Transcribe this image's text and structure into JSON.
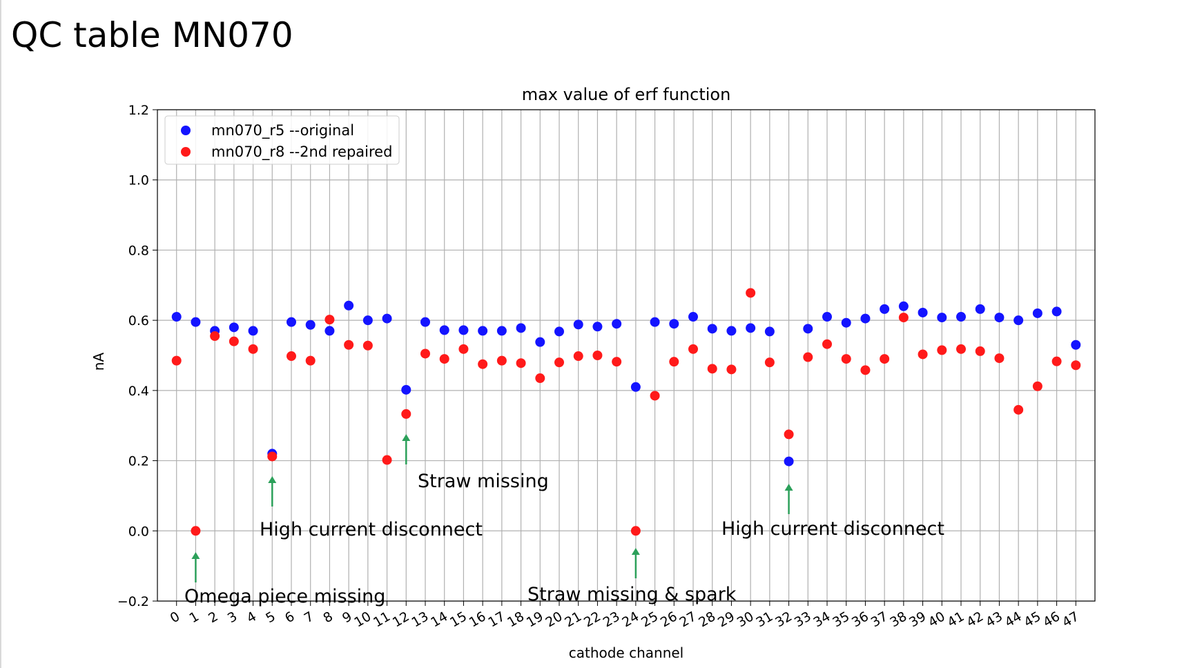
{
  "slide": {
    "title": "QC table MN070"
  },
  "chart_data": {
    "type": "scatter",
    "title": "max value of erf function",
    "xlabel": "cathode channel",
    "ylabel": "nA",
    "ylim": [
      -0.2,
      1.2
    ],
    "yticks": [
      -0.2,
      0.0,
      0.2,
      0.4,
      0.6,
      0.8,
      1.0,
      1.2
    ],
    "ytick_labels": [
      "−0.2",
      "0.0",
      "0.2",
      "0.4",
      "0.6",
      "0.8",
      "1.0",
      "1.2"
    ],
    "xlim": [
      -1,
      48
    ],
    "xticks": [
      0,
      1,
      2,
      3,
      4,
      5,
      6,
      7,
      8,
      9,
      10,
      11,
      12,
      13,
      14,
      15,
      16,
      17,
      18,
      19,
      20,
      21,
      22,
      23,
      24,
      25,
      26,
      27,
      28,
      29,
      30,
      31,
      32,
      33,
      34,
      35,
      36,
      37,
      38,
      39,
      40,
      41,
      42,
      43,
      44,
      45,
      46,
      47
    ],
    "xtick_labels": [
      "0",
      "1",
      "2",
      "3",
      "4",
      "5",
      "6",
      "7",
      "8",
      "9",
      "10",
      "11",
      "12",
      "13",
      "14",
      "15",
      "16",
      "17",
      "18",
      "19",
      "20",
      "21",
      "22",
      "23",
      "24",
      "25",
      "26",
      "27",
      "28",
      "29",
      "30",
      "31",
      "32",
      "33",
      "34",
      "35",
      "36",
      "37",
      "38",
      "39",
      "40",
      "41",
      "42",
      "43",
      "44",
      "45",
      "46",
      "47"
    ],
    "grid": true,
    "legend_position": "top-left",
    "series": [
      {
        "name": "mn070_r5 --original",
        "color": "#1414ff",
        "x": [
          0,
          1,
          2,
          3,
          4,
          5,
          6,
          7,
          8,
          9,
          10,
          11,
          12,
          13,
          14,
          15,
          16,
          17,
          18,
          19,
          20,
          21,
          22,
          23,
          24,
          25,
          26,
          27,
          28,
          29,
          30,
          31,
          32,
          33,
          34,
          35,
          36,
          37,
          38,
          39,
          40,
          41,
          42,
          43,
          44,
          45,
          46,
          47
        ],
        "y": [
          0.61,
          0.595,
          0.57,
          0.58,
          0.57,
          0.22,
          0.595,
          0.587,
          0.57,
          0.642,
          0.6,
          0.605,
          0.402,
          0.595,
          0.572,
          0.572,
          0.57,
          0.57,
          0.578,
          0.538,
          0.568,
          0.588,
          0.582,
          0.59,
          0.41,
          0.595,
          0.59,
          0.61,
          0.576,
          0.57,
          0.578,
          0.568,
          0.198,
          0.576,
          0.61,
          0.593,
          0.605,
          0.632,
          0.64,
          0.622,
          0.608,
          0.61,
          0.632,
          0.608,
          0.6,
          0.62,
          0.625,
          0.53
        ]
      },
      {
        "name": "mn070_r8 --2nd repaired",
        "color": "#ff1a1a",
        "x": [
          0,
          1,
          2,
          3,
          4,
          5,
          6,
          7,
          8,
          9,
          10,
          11,
          12,
          13,
          14,
          15,
          16,
          17,
          18,
          19,
          20,
          21,
          22,
          23,
          24,
          25,
          26,
          27,
          28,
          29,
          30,
          31,
          32,
          33,
          34,
          35,
          36,
          37,
          38,
          39,
          40,
          41,
          42,
          43,
          44,
          45,
          46,
          47
        ],
        "y": [
          0.485,
          0.0,
          0.555,
          0.54,
          0.518,
          0.212,
          0.498,
          0.485,
          0.602,
          0.53,
          0.528,
          0.202,
          0.333,
          0.505,
          0.49,
          0.518,
          0.475,
          0.485,
          0.478,
          0.435,
          0.48,
          0.498,
          0.5,
          0.482,
          0.0,
          0.385,
          0.482,
          0.518,
          0.462,
          0.46,
          0.678,
          0.48,
          0.275,
          0.495,
          0.532,
          0.49,
          0.458,
          0.49,
          0.608,
          0.503,
          0.515,
          0.518,
          0.512,
          0.492,
          0.345,
          0.412,
          0.483,
          0.472
        ]
      }
    ],
    "annotations": [
      {
        "text": "Omega piece missing",
        "target_x": 1,
        "target_y": 0.0,
        "arrow_color": "#2ca05a"
      },
      {
        "text": "High current disconnect",
        "target_x": 5,
        "target_y": 0.212,
        "arrow_color": "#2ca05a"
      },
      {
        "text": "Straw missing",
        "target_x": 12,
        "target_y": 0.333,
        "arrow_color": "#2ca05a"
      },
      {
        "text": "Straw missing & spark",
        "target_x": 24,
        "target_y": 0.0,
        "arrow_color": "#2ca05a"
      },
      {
        "text": "High current disconnect",
        "target_x": 32,
        "target_y": 0.198,
        "arrow_color": "#2ca05a"
      }
    ]
  }
}
